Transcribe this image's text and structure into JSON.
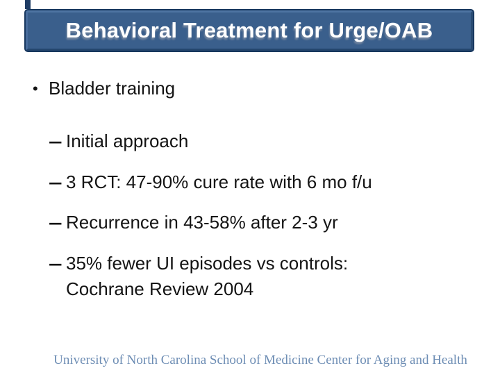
{
  "slide": {
    "title_bar": {
      "title": "Behavioral Treatment for Urge/OAB"
    },
    "body": {
      "main_bullet": {
        "marker": "•",
        "text": "Bladder training"
      },
      "sub_bullets": [
        {
          "marker": "–",
          "lines": [
            "Initial approach"
          ]
        },
        {
          "marker": "–",
          "lines": [
            "3 RCT: 47-90% cure rate with 6 mo f/u"
          ]
        },
        {
          "marker": "–",
          "lines": [
            "Recurrence in 43-58% after 2-3 yr"
          ]
        },
        {
          "marker": "–",
          "lines": [
            "35% fewer UI episodes vs controls:",
            "Cochrane Review 2004"
          ]
        }
      ]
    },
    "footer": {
      "text": "University of North Carolina School of Medicine Center for Aging and Health"
    },
    "colors": {
      "background": "#FFFFFF",
      "title_bar_face": "#3A5F8C",
      "title_bar_border": "#17375E",
      "title_bar_bevel_light": "#4E74A2",
      "title_bar_bevel_dark": "#24466E",
      "title_text": "#FFFFFF",
      "body_text": "#141414",
      "footer_text": "#6D8DB4"
    }
  }
}
